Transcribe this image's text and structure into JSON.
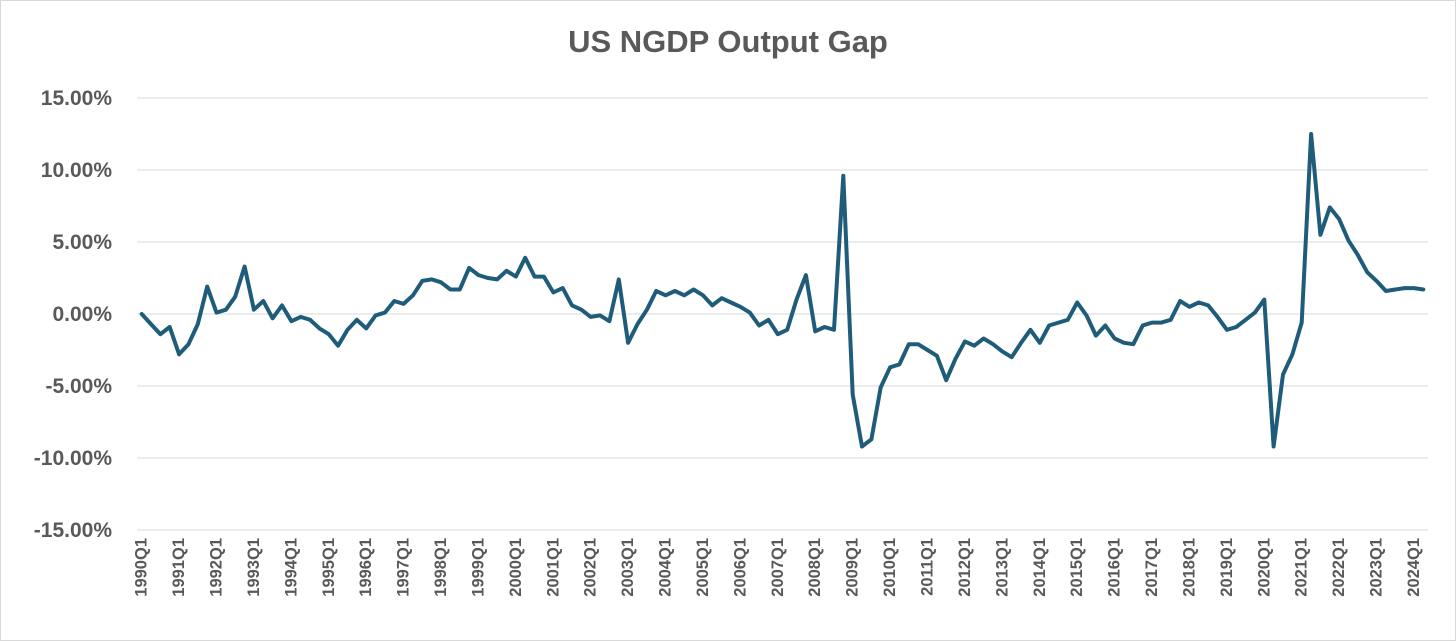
{
  "chart_data": {
    "type": "line",
    "title": "US NGDP Output Gap",
    "xlabel": "",
    "ylabel": "",
    "ylim": [
      -0.15,
      0.15
    ],
    "yticks": [
      0.15,
      0.1,
      0.05,
      0.0,
      -0.05,
      -0.1,
      -0.15
    ],
    "ytick_labels": [
      "15.00%",
      "10.00%",
      "5.00%",
      "0.00%",
      "-5.00%",
      "-10.00%",
      "-15.00%"
    ],
    "grid": true,
    "legend": "none",
    "line_color": "#1f5c7a",
    "x_labels": [
      "1990Q1",
      "1991Q1",
      "1992Q1",
      "1993Q1",
      "1994Q1",
      "1995Q1",
      "1996Q1",
      "1997Q1",
      "1998Q1",
      "1999Q1",
      "2000Q1",
      "2001Q1",
      "2002Q1",
      "2003Q1",
      "2004Q1",
      "2005Q1",
      "2006Q1",
      "2007Q1",
      "2008Q1",
      "2009Q1",
      "2010Q1",
      "2011Q1",
      "2012Q1",
      "2013Q1",
      "2014Q1",
      "2015Q1",
      "2016Q1",
      "2017Q1",
      "2018Q1",
      "2019Q1",
      "2020Q1",
      "2021Q1",
      "2022Q1",
      "2023Q1",
      "2024Q1"
    ],
    "series": [
      {
        "x": [
          "1990Q1",
          "1990Q2",
          "1990Q3",
          "1990Q4",
          "1991Q1",
          "1991Q2",
          "1991Q3",
          "1991Q4",
          "1992Q1",
          "1992Q2",
          "1992Q3",
          "1992Q4",
          "1993Q1",
          "1993Q2",
          "1993Q3",
          "1993Q4",
          "1994Q1",
          "1994Q2",
          "1994Q3",
          "1994Q4",
          "1995Q1",
          "1995Q2",
          "1995Q3",
          "1995Q4",
          "1996Q1",
          "1996Q2",
          "1996Q3",
          "1996Q4",
          "1997Q1",
          "1997Q2",
          "1997Q3",
          "1997Q4",
          "1998Q1",
          "1998Q2",
          "1998Q3",
          "1998Q4",
          "1999Q1",
          "1999Q2",
          "1999Q3",
          "1999Q4",
          "2000Q1",
          "2000Q2",
          "2000Q3",
          "2000Q4",
          "2001Q1",
          "2001Q2",
          "2001Q3",
          "2001Q4",
          "2002Q1",
          "2002Q2",
          "2002Q3",
          "2002Q4",
          "2003Q1",
          "2003Q2",
          "2003Q3",
          "2003Q4",
          "2004Q1",
          "2004Q2",
          "2004Q3",
          "2004Q4",
          "2005Q1",
          "2005Q2",
          "2005Q3",
          "2005Q4",
          "2006Q1",
          "2006Q2",
          "2006Q3",
          "2006Q4",
          "2007Q1",
          "2007Q2",
          "2007Q3",
          "2007Q4",
          "2008Q1",
          "2008Q2",
          "2008Q3",
          "2008Q4",
          "2009Q1",
          "2009Q2",
          "2009Q3",
          "2009Q4",
          "2010Q1",
          "2010Q2",
          "2010Q3",
          "2010Q4",
          "2011Q1",
          "2011Q2",
          "2011Q3",
          "2011Q4",
          "2012Q1",
          "2012Q2",
          "2012Q3",
          "2012Q4",
          "2013Q1",
          "2013Q2",
          "2013Q3",
          "2013Q4",
          "2014Q1",
          "2014Q2",
          "2014Q3",
          "2014Q4",
          "2015Q1",
          "2015Q2",
          "2015Q3",
          "2015Q4",
          "2016Q1",
          "2016Q2",
          "2016Q3",
          "2016Q4",
          "2017Q1",
          "2017Q2",
          "2017Q3",
          "2017Q4",
          "2018Q1",
          "2018Q2",
          "2018Q3",
          "2018Q4",
          "2019Q1",
          "2019Q2",
          "2019Q3",
          "2019Q4",
          "2020Q1",
          "2020Q2",
          "2020Q3",
          "2020Q4",
          "2021Q1",
          "2021Q2",
          "2021Q3",
          "2021Q4",
          "2022Q1",
          "2022Q2",
          "2022Q3",
          "2022Q4",
          "2023Q1",
          "2023Q2",
          "2023Q3",
          "2023Q4",
          "2024Q1",
          "2024Q2"
        ],
        "values": [
          0.0,
          -0.007,
          -0.014,
          -0.009,
          -0.028,
          -0.021,
          -0.007,
          0.019,
          0.001,
          0.003,
          0.012,
          0.033,
          0.003,
          0.009,
          -0.003,
          0.006,
          -0.005,
          -0.002,
          -0.004,
          -0.01,
          -0.014,
          -0.022,
          -0.011,
          -0.004,
          -0.01,
          -0.001,
          0.001,
          0.009,
          0.007,
          0.013,
          0.023,
          0.024,
          0.022,
          0.017,
          0.017,
          0.032,
          0.027,
          0.025,
          0.024,
          0.03,
          0.026,
          0.039,
          0.026,
          0.026,
          0.015,
          0.018,
          0.006,
          0.003,
          -0.002,
          -0.001,
          -0.005,
          0.024,
          -0.02,
          -0.007,
          0.003,
          0.016,
          0.013,
          0.016,
          0.013,
          0.017,
          0.013,
          0.006,
          0.011,
          0.008,
          0.005,
          0.001,
          -0.008,
          -0.004,
          -0.014,
          -0.011,
          0.01,
          0.027,
          -0.012,
          -0.009,
          -0.011,
          0.096,
          -0.056,
          -0.092,
          -0.087,
          -0.051,
          -0.037,
          -0.035,
          -0.021,
          -0.021,
          -0.025,
          -0.029,
          -0.046,
          -0.031,
          -0.019,
          -0.022,
          -0.017,
          -0.021,
          -0.026,
          -0.03,
          -0.02,
          -0.011,
          -0.02,
          -0.008,
          -0.006,
          -0.004,
          0.008,
          -0.001,
          -0.015,
          -0.008,
          -0.017,
          -0.02,
          -0.021,
          -0.008,
          -0.006,
          -0.006,
          -0.004,
          0.009,
          0.005,
          0.008,
          0.006,
          -0.002,
          -0.011,
          -0.009,
          -0.004,
          0.001,
          0.01,
          -0.092,
          -0.042,
          -0.028,
          -0.006,
          0.125,
          0.055,
          0.074,
          0.066,
          0.051,
          0.041,
          0.029,
          0.023,
          0.016,
          0.017,
          0.018,
          0.018,
          0.017
        ]
      }
    ]
  }
}
